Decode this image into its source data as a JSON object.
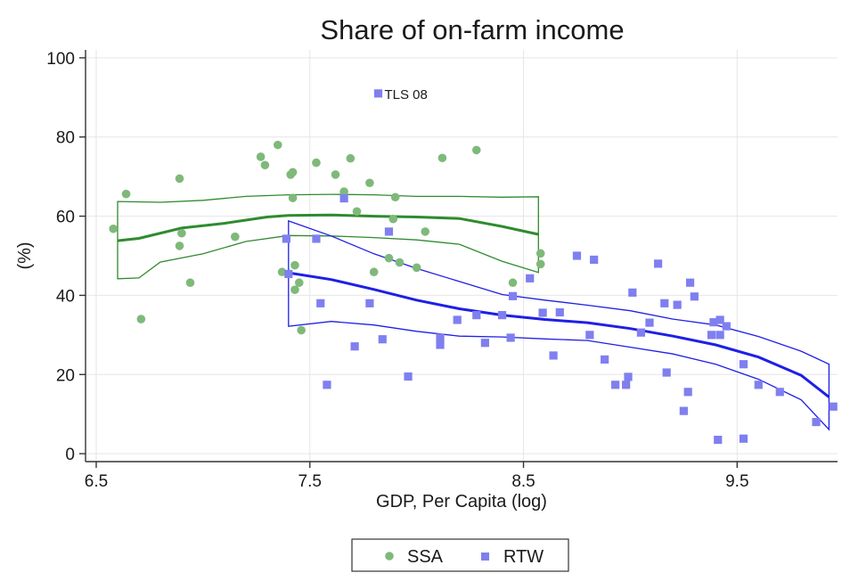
{
  "chart_data": {
    "type": "scatter",
    "title": "Share of on-farm income",
    "xlabel": "GDP, Per Capita (log)",
    "ylabel": "(%)",
    "xlim": [
      6.45,
      9.97
    ],
    "ylim": [
      -2,
      102
    ],
    "xticks": [
      6.5,
      7.5,
      8.5,
      9.5
    ],
    "xtick_labels": [
      "6.5",
      "7.5",
      "8.5",
      "9.5"
    ],
    "yticks": [
      0,
      20,
      40,
      60,
      80,
      100
    ],
    "ytick_labels": [
      "0",
      "20",
      "40",
      "60",
      "80",
      "100"
    ],
    "grid": true,
    "legend_position": "bottom",
    "colors": {
      "SSA": "#7fb97a",
      "RTW": "#7f7fef",
      "SSA_line": "#2e8b2e",
      "RTW_line": "#1f1fe6"
    },
    "annotations": [
      {
        "text": "TLS 08",
        "x": 7.82,
        "y": 91
      }
    ],
    "series": [
      {
        "name": "SSA",
        "marker": "circle",
        "points": [
          [
            6.58,
            56.8
          ],
          [
            6.64,
            65.6
          ],
          [
            6.71,
            34.0
          ],
          [
            6.89,
            69.5
          ],
          [
            6.89,
            52.5
          ],
          [
            6.9,
            55.7
          ],
          [
            6.94,
            43.2
          ],
          [
            7.15,
            54.8
          ],
          [
            7.27,
            75.0
          ],
          [
            7.29,
            72.9
          ],
          [
            7.35,
            78.0
          ],
          [
            7.37,
            45.9
          ],
          [
            7.41,
            70.5
          ],
          [
            7.42,
            71.1
          ],
          [
            7.42,
            64.6
          ],
          [
            7.43,
            47.6
          ],
          [
            7.43,
            41.4
          ],
          [
            7.45,
            43.2
          ],
          [
            7.46,
            31.2
          ],
          [
            7.53,
            73.5
          ],
          [
            7.62,
            70.5
          ],
          [
            7.66,
            66.2
          ],
          [
            7.69,
            74.6
          ],
          [
            7.72,
            61.2
          ],
          [
            7.78,
            68.4
          ],
          [
            7.8,
            45.9
          ],
          [
            7.87,
            49.4
          ],
          [
            7.89,
            59.3
          ],
          [
            7.9,
            64.8
          ],
          [
            7.92,
            48.3
          ],
          [
            8.0,
            47.0
          ],
          [
            8.04,
            56.1
          ],
          [
            8.12,
            74.7
          ],
          [
            8.28,
            76.7
          ],
          [
            8.45,
            43.2
          ],
          [
            8.58,
            50.6
          ],
          [
            8.58,
            47.9
          ]
        ],
        "fit": [
          [
            6.6,
            53.8
          ],
          [
            6.7,
            54.4
          ],
          [
            6.9,
            57.0
          ],
          [
            7.1,
            58.2
          ],
          [
            7.3,
            59.8
          ],
          [
            7.4,
            60.2
          ],
          [
            7.6,
            60.3
          ],
          [
            7.8,
            60.0
          ],
          [
            8.0,
            59.8
          ],
          [
            8.2,
            59.4
          ],
          [
            8.4,
            57.4
          ],
          [
            8.57,
            55.4
          ]
        ],
        "upper": [
          [
            6.6,
            63.7
          ],
          [
            6.8,
            63.5
          ],
          [
            7.0,
            64.0
          ],
          [
            7.2,
            65.0
          ],
          [
            7.4,
            65.4
          ],
          [
            7.6,
            65.5
          ],
          [
            7.8,
            65.4
          ],
          [
            8.0,
            65.0
          ],
          [
            8.2,
            65.0
          ],
          [
            8.4,
            64.8
          ],
          [
            8.57,
            64.9
          ]
        ],
        "lower": [
          [
            6.6,
            44.2
          ],
          [
            6.7,
            44.4
          ],
          [
            6.8,
            48.4
          ],
          [
            7.0,
            50.5
          ],
          [
            7.2,
            53.6
          ],
          [
            7.4,
            55.1
          ],
          [
            7.6,
            55.0
          ],
          [
            7.8,
            54.6
          ],
          [
            8.0,
            54.0
          ],
          [
            8.2,
            52.9
          ],
          [
            8.4,
            48.6
          ],
          [
            8.57,
            45.8
          ]
        ]
      },
      {
        "name": "RTW",
        "marker": "square",
        "points": [
          [
            7.39,
            54.3
          ],
          [
            7.4,
            45.4
          ],
          [
            7.53,
            54.3
          ],
          [
            7.55,
            38.0
          ],
          [
            7.58,
            17.4
          ],
          [
            7.66,
            64.5
          ],
          [
            7.71,
            27.1
          ],
          [
            7.78,
            38.0
          ],
          [
            7.84,
            28.9
          ],
          [
            7.87,
            56.1
          ],
          [
            7.96,
            19.5
          ],
          [
            8.11,
            29.3
          ],
          [
            8.11,
            27.5
          ],
          [
            8.19,
            33.8
          ],
          [
            8.28,
            35.0
          ],
          [
            8.32,
            28.0
          ],
          [
            8.4,
            35.0
          ],
          [
            8.44,
            29.3
          ],
          [
            8.45,
            39.8
          ],
          [
            8.53,
            44.3
          ],
          [
            8.59,
            35.6
          ],
          [
            8.64,
            24.8
          ],
          [
            8.67,
            35.7
          ],
          [
            8.75,
            50.0
          ],
          [
            8.81,
            30.0
          ],
          [
            8.83,
            49.0
          ],
          [
            8.88,
            23.8
          ],
          [
            8.93,
            17.4
          ],
          [
            8.98,
            17.4
          ],
          [
            8.99,
            19.4
          ],
          [
            9.01,
            40.7
          ],
          [
            9.05,
            30.6
          ],
          [
            9.09,
            33.1
          ],
          [
            9.13,
            48.0
          ],
          [
            9.16,
            38.0
          ],
          [
            9.17,
            20.5
          ],
          [
            9.22,
            37.6
          ],
          [
            9.25,
            10.8
          ],
          [
            9.27,
            15.6
          ],
          [
            9.28,
            43.2
          ],
          [
            9.3,
            39.7
          ],
          [
            9.38,
            30.0
          ],
          [
            9.39,
            33.2
          ],
          [
            9.41,
            3.5
          ],
          [
            9.42,
            33.8
          ],
          [
            9.42,
            30.0
          ],
          [
            9.45,
            32.2
          ],
          [
            9.53,
            22.6
          ],
          [
            9.53,
            3.8
          ],
          [
            9.6,
            17.4
          ],
          [
            9.7,
            15.6
          ],
          [
            9.87,
            8.0
          ],
          [
            9.95,
            11.9
          ]
        ],
        "fit": [
          [
            7.4,
            45.7
          ],
          [
            7.6,
            44.0
          ],
          [
            7.8,
            41.5
          ],
          [
            8.0,
            38.8
          ],
          [
            8.2,
            36.6
          ],
          [
            8.4,
            35.0
          ],
          [
            8.6,
            33.9
          ],
          [
            8.8,
            33.1
          ],
          [
            9.0,
            31.6
          ],
          [
            9.2,
            29.7
          ],
          [
            9.4,
            27.5
          ],
          [
            9.6,
            24.4
          ],
          [
            9.8,
            19.8
          ],
          [
            9.93,
            14.3
          ]
        ],
        "upper": [
          [
            7.4,
            58.8
          ],
          [
            7.6,
            55.0
          ],
          [
            7.8,
            50.5
          ],
          [
            8.0,
            46.8
          ],
          [
            8.2,
            43.5
          ],
          [
            8.4,
            40.2
          ],
          [
            8.6,
            38.8
          ],
          [
            8.8,
            37.5
          ],
          [
            9.0,
            36.1
          ],
          [
            9.2,
            34.0
          ],
          [
            9.4,
            32.5
          ],
          [
            9.6,
            29.6
          ],
          [
            9.8,
            25.9
          ],
          [
            9.93,
            22.6
          ]
        ],
        "lower": [
          [
            7.4,
            32.2
          ],
          [
            7.6,
            33.4
          ],
          [
            7.8,
            32.5
          ],
          [
            8.0,
            30.9
          ],
          [
            8.2,
            29.7
          ],
          [
            8.4,
            29.5
          ],
          [
            8.6,
            29.0
          ],
          [
            8.8,
            28.6
          ],
          [
            9.0,
            26.9
          ],
          [
            9.2,
            25.2
          ],
          [
            9.4,
            22.6
          ],
          [
            9.6,
            18.8
          ],
          [
            9.8,
            13.6
          ],
          [
            9.93,
            6.1
          ]
        ]
      }
    ]
  }
}
